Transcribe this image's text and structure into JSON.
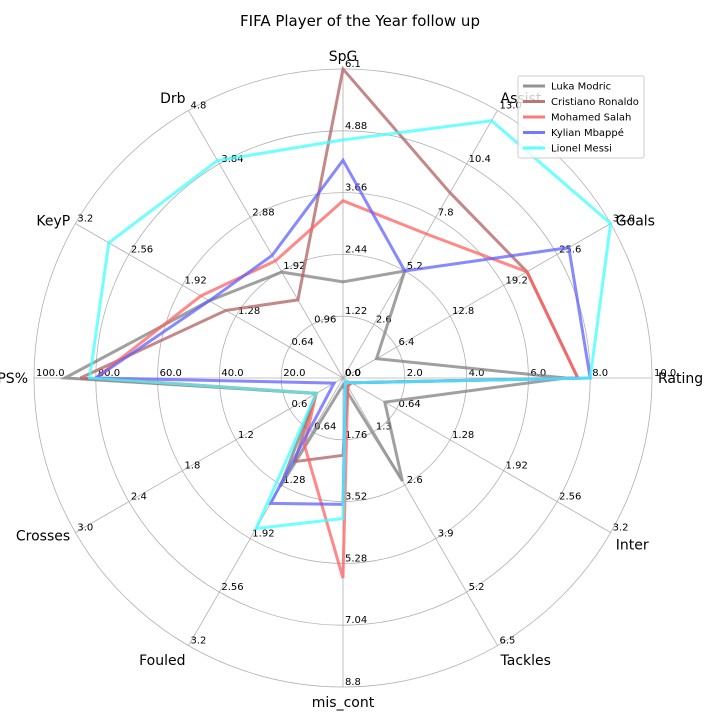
{
  "chart_data": {
    "type": "radar",
    "title": "FIFA Player of the Year follow up",
    "grid": true,
    "legend_position": "top-right",
    "axes": [
      {
        "name": "Rating",
        "max": 10.0,
        "ticks": [
          "0.0",
          "2.0",
          "4.0",
          "6.0",
          "8.0",
          "10.0"
        ]
      },
      {
        "name": "Goals",
        "max": 32.0,
        "ticks": [
          "0.0",
          "6.4",
          "12.8",
          "19.2",
          "25.6",
          "32.0"
        ]
      },
      {
        "name": "Assist",
        "max": 13.0,
        "ticks": [
          "0.0",
          "2.6",
          "5.2",
          "7.8",
          "10.4",
          "13.0"
        ]
      },
      {
        "name": "SpG",
        "max": 6.1,
        "ticks": [
          "0.0",
          "1.22",
          "2.44",
          "3.66",
          "4.88",
          "6.1"
        ]
      },
      {
        "name": "Drb",
        "max": 4.8,
        "ticks": [
          "0.96",
          "1.92",
          "2.88",
          "3.84",
          "4.8"
        ]
      },
      {
        "name": "KeyP",
        "max": 3.2,
        "ticks": [
          "0.64",
          "1.28",
          "1.92",
          "2.56",
          "3.2"
        ]
      },
      {
        "name": "PS%",
        "max": 100.0,
        "ticks": [
          "0.0",
          "20.0",
          "40.0",
          "60.0",
          "80.0",
          "100.0"
        ]
      },
      {
        "name": "Crosses",
        "max": 3.0,
        "ticks": [
          "0.6",
          "1.2",
          "1.8",
          "2.4",
          "3.0"
        ]
      },
      {
        "name": "Fouled",
        "max": 3.2,
        "ticks": [
          "0.64",
          "1.28",
          "1.92",
          "2.56",
          "3.2"
        ]
      },
      {
        "name": "mis_cont",
        "max": 8.8,
        "ticks": [
          "1.76",
          "3.52",
          "5.28",
          "7.04",
          "8.8"
        ]
      },
      {
        "name": "Tackles",
        "max": 6.5,
        "ticks": [
          "1.3",
          "2.6",
          "3.9",
          "5.2",
          "6.5"
        ]
      },
      {
        "name": "Inter",
        "max": 3.2,
        "ticks": [
          "0.64",
          "1.28",
          "1.92",
          "2.56",
          "3.2"
        ]
      }
    ],
    "series": [
      {
        "name": "Luka Modric",
        "color": "#808080",
        "values": [
          7.2,
          4.0,
          5.2,
          1.9,
          1.9,
          1.6,
          90.0,
          0.3,
          1.3,
          0.2,
          2.5,
          0.5
        ]
      },
      {
        "name": "Cristiano Ronaldo",
        "color": "#b06060",
        "values": [
          7.6,
          22.0,
          9.0,
          6.1,
          1.4,
          1.4,
          85.0,
          0.3,
          1.0,
          2.2,
          0.2,
          0.1
        ]
      },
      {
        "name": "Mohamed Salah",
        "color": "#ff6060",
        "values": [
          7.6,
          22.0,
          7.0,
          3.5,
          2.1,
          1.7,
          80.0,
          0.3,
          0.8,
          5.7,
          0.2,
          0.1
        ]
      },
      {
        "name": "Kylian Mbappé",
        "color": "#6060ff",
        "values": [
          8.0,
          27.0,
          5.2,
          4.3,
          2.2,
          1.6,
          80.0,
          0.1,
          1.5,
          3.6,
          0.1,
          0.1
        ]
      },
      {
        "name": "Lionel Messi",
        "color": "#40ffff",
        "values": [
          8.0,
          32.0,
          12.5,
          4.7,
          3.9,
          2.8,
          82.0,
          0.3,
          1.8,
          4.0,
          0.1,
          0.1
        ]
      }
    ]
  }
}
